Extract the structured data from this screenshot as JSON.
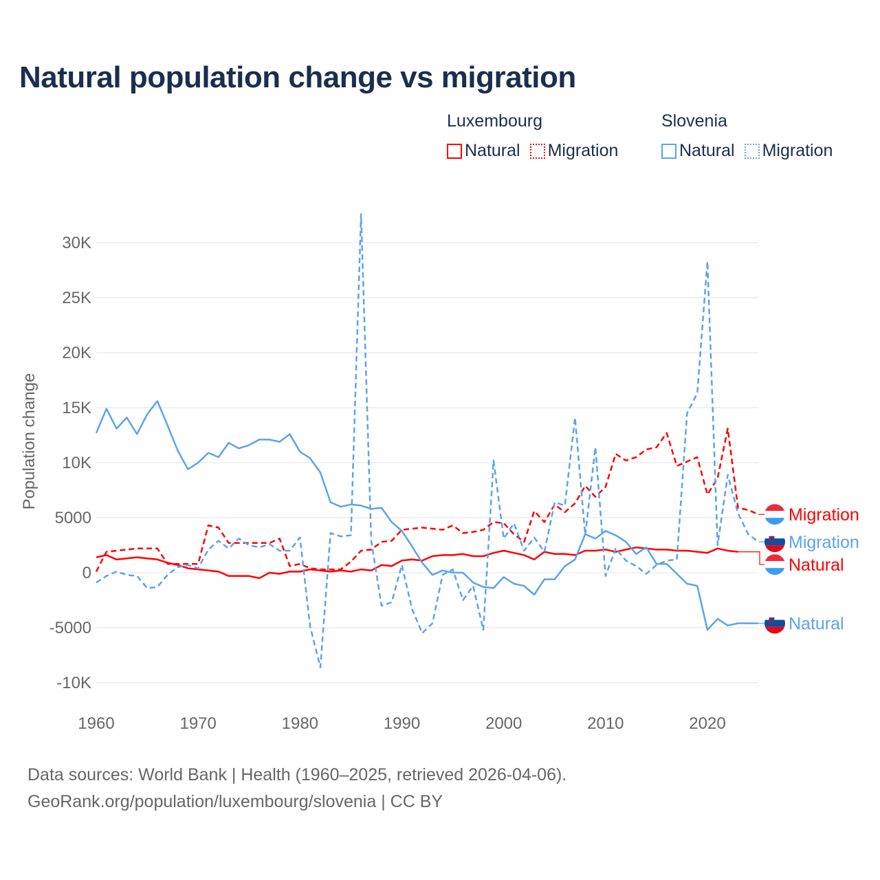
{
  "title": "Natural population change vs migration",
  "legend": {
    "groups": [
      {
        "name": "Luxembourg",
        "items": [
          {
            "label": "Natural",
            "style": "solid",
            "color": "#ff0000"
          },
          {
            "label": "Migration",
            "style": "dotted",
            "color": "#ff0000"
          }
        ]
      },
      {
        "name": "Slovenia",
        "items": [
          {
            "label": "Natural",
            "style": "solid",
            "color": "#5ba3ea"
          },
          {
            "label": "Migration",
            "style": "dotted",
            "color": "#5ba3ea"
          }
        ]
      }
    ]
  },
  "footer": {
    "line1": "Data sources: World Bank | Health (1960–2025, retrieved 2026-04-06).",
    "line2": "GeoRank.org/population/luxembourg/slovenia | CC BY"
  },
  "chart_data": {
    "type": "line",
    "title": "Natural population change vs migration",
    "xlabel": "",
    "ylabel": "Population change",
    "xlim": [
      1960,
      2025
    ],
    "ylim": [
      -11000,
      33000
    ],
    "x_ticks": [
      1960,
      1970,
      1980,
      1990,
      2000,
      2010,
      2020
    ],
    "y_ticks": [
      {
        "v": 30000,
        "label": "30K"
      },
      {
        "v": 25000,
        "label": "25K"
      },
      {
        "v": 20000,
        "label": "20K"
      },
      {
        "v": 15000,
        "label": "15K"
      },
      {
        "v": 10000,
        "label": "10K"
      },
      {
        "v": 5000,
        "label": "5000"
      },
      {
        "v": 0,
        "label": "0"
      },
      {
        "v": -5000,
        "label": "-5000"
      },
      {
        "v": -10000,
        "label": "-10K"
      }
    ],
    "grid": true,
    "legend_placement": "top-right",
    "x_start": 1960,
    "series": [
      {
        "name": "Luxembourg Natural",
        "end_label": "Natural",
        "country": "luxembourg",
        "color": "#ff0000",
        "dash": false,
        "values": [
          1400,
          1600,
          1200,
          1300,
          1400,
          1300,
          1200,
          900,
          700,
          400,
          300,
          200,
          100,
          -300,
          -300,
          -300,
          -500,
          0,
          -100,
          100,
          100,
          300,
          200,
          100,
          200,
          100,
          300,
          200,
          700,
          600,
          1100,
          1200,
          1100,
          1500,
          1600,
          1600,
          1700,
          1500,
          1500,
          1800,
          2000,
          1800,
          1600,
          1200,
          1900,
          1700,
          1700,
          1600,
          2000,
          2000,
          2100,
          1900,
          2100,
          2300,
          2200,
          2100,
          2100,
          2000,
          2000,
          1900,
          1800,
          2200,
          2000,
          1900
        ]
      },
      {
        "name": "Luxembourg Migration",
        "end_label": "Migration",
        "country": "luxembourg",
        "color": "#ff0000",
        "dash": true,
        "values": [
          100,
          1900,
          2000,
          2100,
          2200,
          2200,
          2200,
          800,
          800,
          800,
          800,
          4300,
          4100,
          2700,
          2700,
          2700,
          2700,
          2700,
          3100,
          600,
          800,
          400,
          300,
          300,
          300,
          1000,
          2000,
          2100,
          2800,
          2900,
          3900,
          4000,
          4100,
          4000,
          3900,
          4300,
          3600,
          3700,
          3900,
          4600,
          4500,
          3500,
          2800,
          5600,
          4600,
          6200,
          5500,
          6300,
          7900,
          6900,
          7800,
          10800,
          10200,
          10500,
          11200,
          11400,
          12700,
          9700,
          10100,
          10500,
          7100,
          8600,
          13100,
          5900,
          5700,
          5300
        ]
      },
      {
        "name": "Slovenia Natural",
        "end_label": "Natural",
        "country": "slovenia",
        "color": "#5ba3ea",
        "dash": false,
        "values": [
          12700,
          14900,
          13100,
          14100,
          12600,
          14400,
          15600,
          13400,
          11100,
          9400,
          10000,
          10900,
          10500,
          11800,
          11300,
          11600,
          12100,
          12100,
          11900,
          12600,
          11000,
          10400,
          9100,
          6400,
          6000,
          6200,
          6100,
          5800,
          5900,
          4600,
          3800,
          2400,
          900,
          -200,
          200,
          0,
          0,
          -900,
          -1300,
          -1400,
          -400,
          -1000,
          -1200,
          -2000,
          -600,
          -600,
          600,
          1200,
          3500,
          3100,
          3800,
          3400,
          2800,
          1700,
          2300,
          800,
          800,
          -100,
          -1000,
          -1200,
          -5200,
          -4200,
          -4800,
          -4600,
          -4600,
          -4600
        ]
      },
      {
        "name": "Slovenia Migration",
        "end_label": "Migration",
        "country": "slovenia",
        "color": "#5ba3ea",
        "dash": true,
        "values": [
          -900,
          -300,
          100,
          -200,
          -300,
          -1400,
          -1300,
          -200,
          500,
          700,
          400,
          2100,
          2900,
          2200,
          3100,
          2500,
          2300,
          2600,
          2000,
          2000,
          3200,
          -4900,
          -8600,
          3600,
          3300,
          3400,
          32600,
          2900,
          -3000,
          -2700,
          700,
          -3300,
          -5500,
          -4600,
          -200,
          300,
          -2500,
          -1200,
          -5200,
          10200,
          3100,
          4500,
          2000,
          3200,
          1900,
          6400,
          6100,
          14100,
          3400,
          11400,
          -300,
          2200,
          1100,
          600,
          -100,
          700,
          1100,
          1200,
          14500,
          16300,
          28300,
          2500,
          8900,
          5400,
          3500,
          2800
        ]
      }
    ]
  }
}
